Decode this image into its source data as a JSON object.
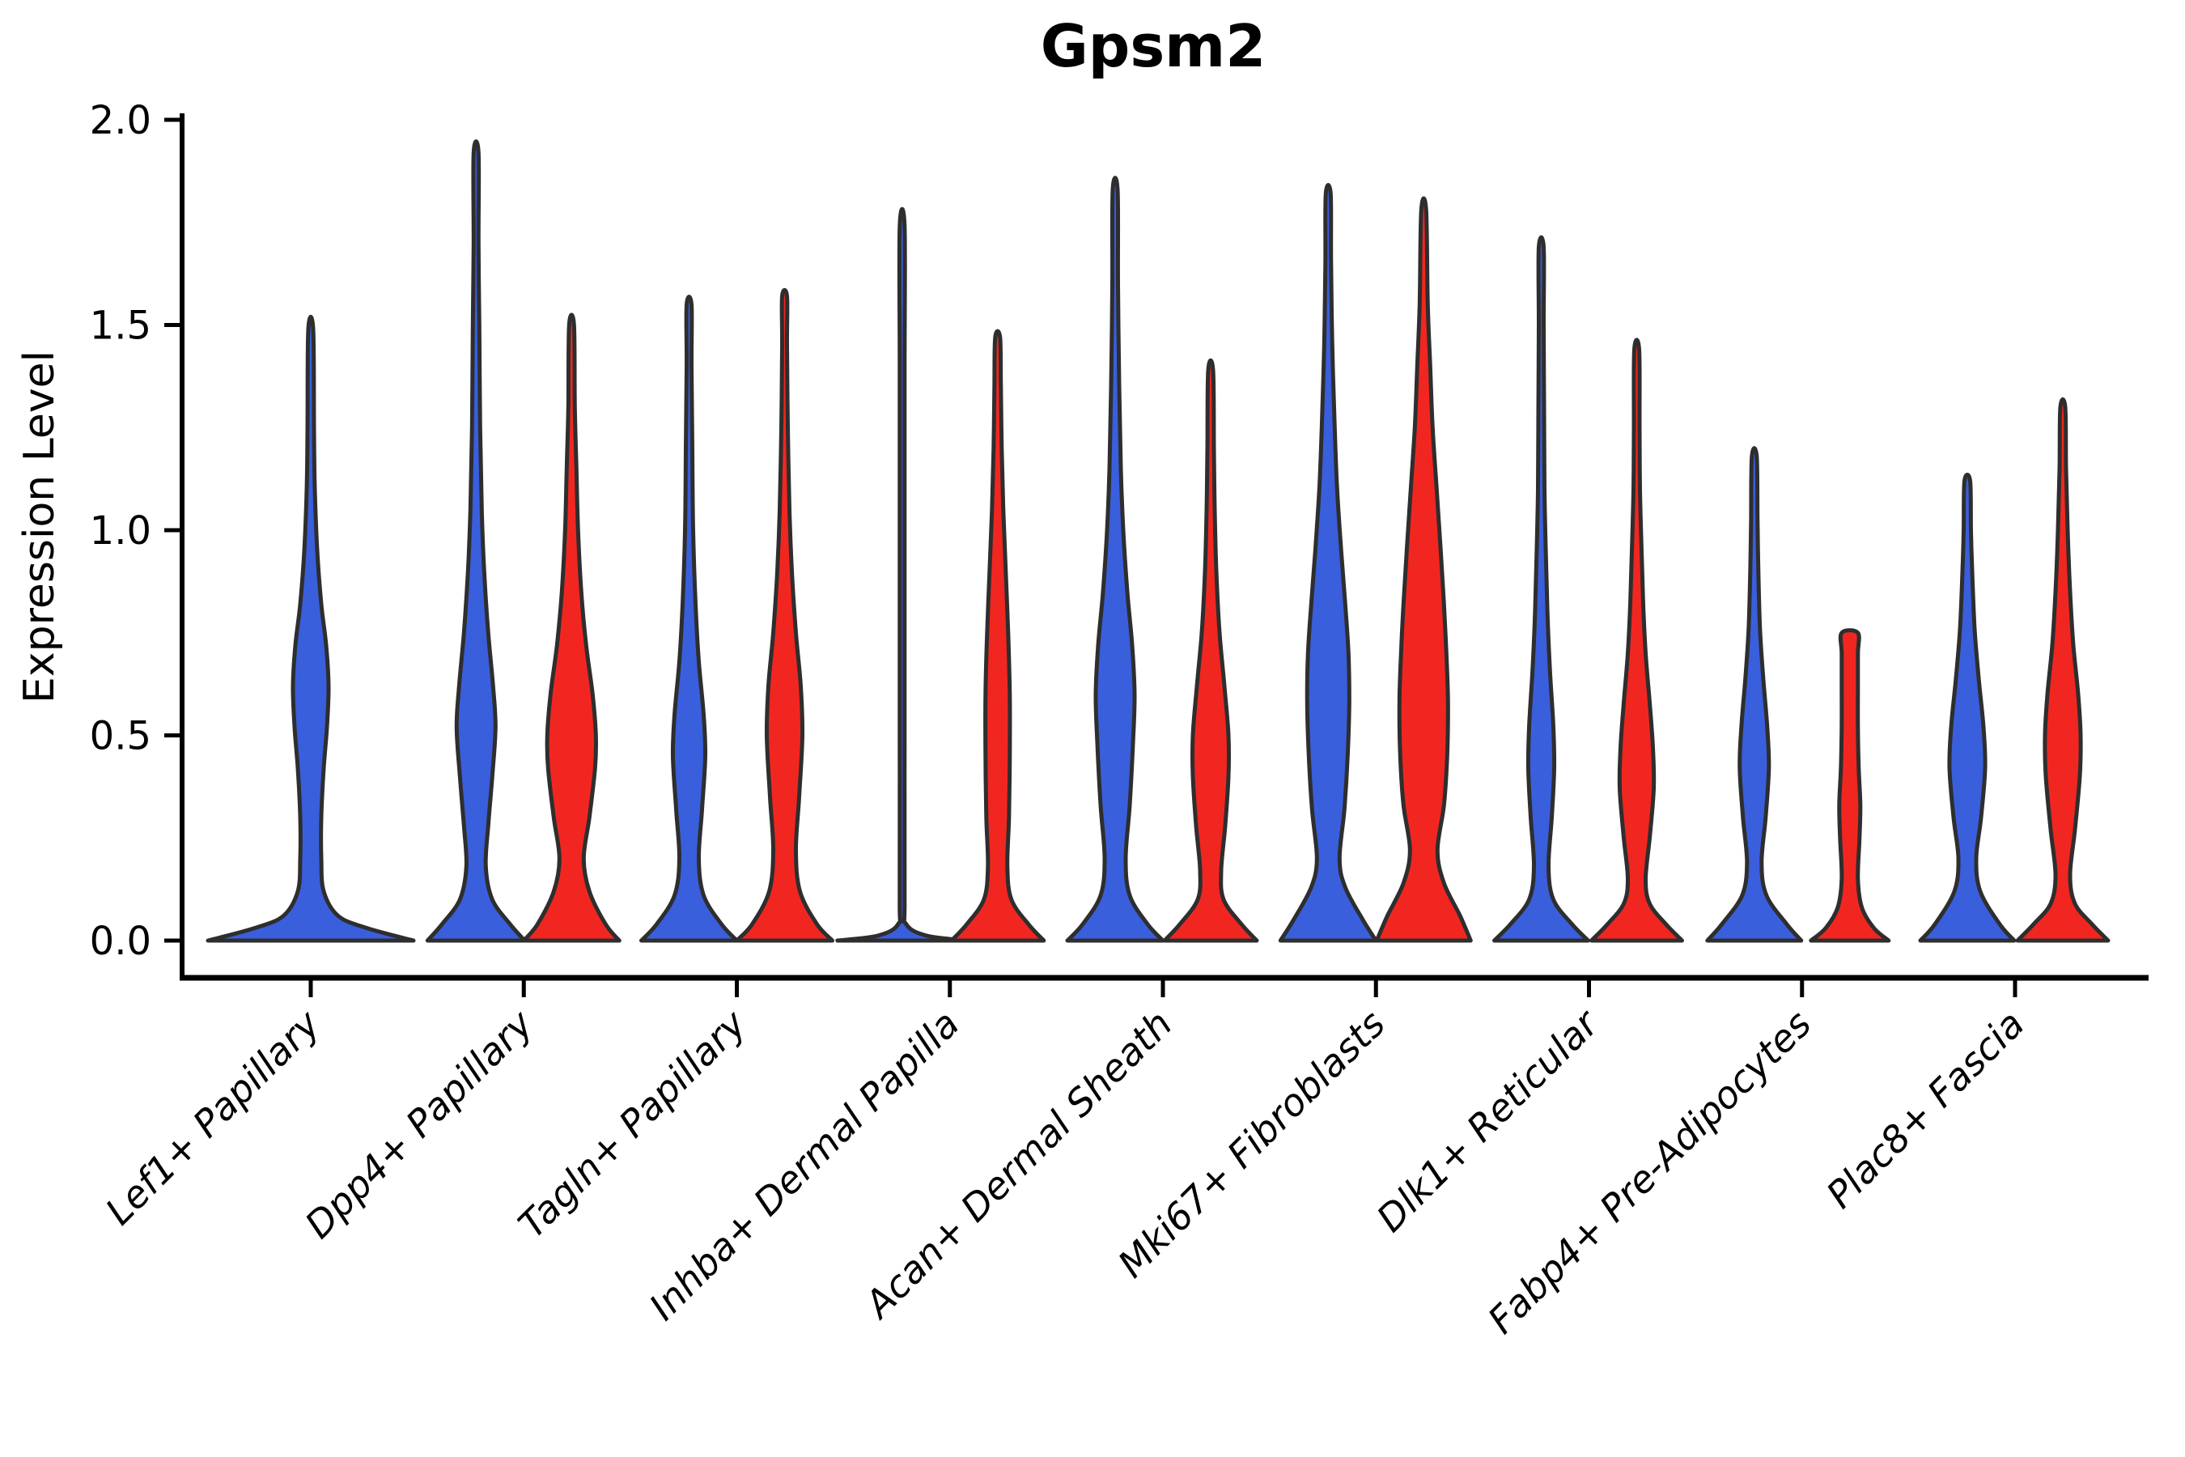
{
  "title": "Gpsm2",
  "y_axis": {
    "label": "Expression Level",
    "ticks": [
      {
        "label": "0.0",
        "value": 0.0
      },
      {
        "label": "0.5",
        "value": 0.5
      },
      {
        "label": "1.0",
        "value": 1.0
      },
      {
        "label": "1.5",
        "value": 1.5
      },
      {
        "label": "2.0",
        "value": 2.0
      }
    ]
  },
  "x_axis": {
    "categories": [
      "Lef1+ Papillary",
      "Dpp4+ Papillary",
      "Tagln+ Papillary",
      "Inhba+ Dermal Papilla",
      "Acan+ Dermal Sheath",
      "Mki67+ Fibroblasts",
      "Dlk1+ Reticular",
      "Fabp4+ Pre-Adipocytes",
      "Plac8+ Fascia"
    ],
    "label": ""
  },
  "colors": {
    "group_blue": "#3A5FDC",
    "group_red": "#F22620",
    "outline": "#2E2E2E",
    "axis": "#000000"
  },
  "chart_data": {
    "type": "violin",
    "title": "Gpsm2",
    "xlabel": "",
    "ylabel": "Expression Level",
    "ylim": [
      0,
      2
    ],
    "yticks": [
      0.0,
      0.5,
      1.0,
      1.5,
      2.0
    ],
    "grid": false,
    "legend": "none",
    "categories": [
      "Lef1+ Papillary",
      "Dpp4+ Papillary",
      "Tagln+ Papillary",
      "Inhba+ Dermal Papilla",
      "Acan+ Dermal Sheath",
      "Mki67+ Fibroblasts",
      "Dlk1+ Reticular",
      "Fabp4+ Pre-Adipocytes",
      "Plac8+ Fascia"
    ],
    "series": [
      {
        "name": "blue",
        "max_expression": [
          1.49,
          1.92,
          1.55,
          1.74,
          1.83,
          1.82,
          1.69,
          1.18,
          1.12
        ]
      },
      {
        "name": "red",
        "max_expression": [
          null,
          1.5,
          1.57,
          1.47,
          1.39,
          1.78,
          1.44,
          0.75,
          1.3
        ]
      }
    ],
    "violins": [
      {
        "cat": 0,
        "group": "blue",
        "solo": true,
        "max": 1.49,
        "flat_top": false,
        "profile": [
          [
            0,
            127
          ],
          [
            0.03,
            70
          ],
          [
            0.06,
            34
          ],
          [
            0.12,
            16
          ],
          [
            0.2,
            13
          ],
          [
            0.3,
            13
          ],
          [
            0.42,
            16
          ],
          [
            0.52,
            20
          ],
          [
            0.62,
            22
          ],
          [
            0.72,
            19
          ],
          [
            0.82,
            13
          ],
          [
            0.95,
            8
          ],
          [
            1.1,
            5
          ],
          [
            1.25,
            4
          ],
          [
            1.49,
            3
          ]
        ]
      },
      {
        "cat": 1,
        "group": "blue",
        "solo": false,
        "max": 1.92,
        "flat_top": false,
        "profile": [
          [
            0,
            60
          ],
          [
            0.04,
            42
          ],
          [
            0.1,
            20
          ],
          [
            0.18,
            12
          ],
          [
            0.28,
            15
          ],
          [
            0.4,
            20
          ],
          [
            0.52,
            24
          ],
          [
            0.62,
            21
          ],
          [
            0.75,
            15
          ],
          [
            0.9,
            10
          ],
          [
            1.05,
            7
          ],
          [
            1.25,
            5
          ],
          [
            1.5,
            4
          ],
          [
            1.7,
            3
          ],
          [
            1.92,
            3
          ]
        ]
      },
      {
        "cat": 1,
        "group": "red",
        "solo": false,
        "max": 1.5,
        "flat_top": false,
        "profile": [
          [
            0,
            59
          ],
          [
            0.04,
            42
          ],
          [
            0.12,
            22
          ],
          [
            0.2,
            15
          ],
          [
            0.3,
            22
          ],
          [
            0.42,
            29
          ],
          [
            0.5,
            30
          ],
          [
            0.6,
            26
          ],
          [
            0.72,
            18
          ],
          [
            0.85,
            12
          ],
          [
            1.0,
            8
          ],
          [
            1.15,
            6
          ],
          [
            1.3,
            4
          ],
          [
            1.5,
            3
          ]
        ]
      },
      {
        "cat": 2,
        "group": "blue",
        "solo": false,
        "max": 1.55,
        "flat_top": false,
        "profile": [
          [
            0,
            59
          ],
          [
            0.04,
            40
          ],
          [
            0.11,
            18
          ],
          [
            0.2,
            12
          ],
          [
            0.32,
            16
          ],
          [
            0.45,
            20
          ],
          [
            0.55,
            18
          ],
          [
            0.68,
            12
          ],
          [
            0.82,
            8
          ],
          [
            1.0,
            5
          ],
          [
            1.2,
            4
          ],
          [
            1.4,
            3
          ],
          [
            1.55,
            3
          ]
        ]
      },
      {
        "cat": 2,
        "group": "red",
        "solo": false,
        "max": 1.57,
        "flat_top": false,
        "profile": [
          [
            0,
            59
          ],
          [
            0.04,
            40
          ],
          [
            0.12,
            19
          ],
          [
            0.22,
            14
          ],
          [
            0.35,
            18
          ],
          [
            0.5,
            22
          ],
          [
            0.62,
            20
          ],
          [
            0.75,
            14
          ],
          [
            0.9,
            9
          ],
          [
            1.05,
            6
          ],
          [
            1.25,
            4
          ],
          [
            1.45,
            3
          ],
          [
            1.57,
            3
          ]
        ]
      },
      {
        "cat": 3,
        "group": "blue",
        "solo": false,
        "max": 1.74,
        "flat_top": false,
        "profile": [
          [
            0,
            80
          ],
          [
            0.012,
            30
          ],
          [
            0.04,
            5
          ],
          [
            0.1,
            3
          ],
          [
            0.5,
            3
          ],
          [
            1.0,
            3
          ],
          [
            1.4,
            3
          ],
          [
            1.74,
            3
          ]
        ]
      },
      {
        "cat": 3,
        "group": "red",
        "solo": false,
        "max": 1.47,
        "flat_top": false,
        "profile": [
          [
            0,
            57
          ],
          [
            0.04,
            38
          ],
          [
            0.1,
            17
          ],
          [
            0.18,
            12
          ],
          [
            0.3,
            14
          ],
          [
            0.45,
            15
          ],
          [
            0.6,
            15
          ],
          [
            0.75,
            13
          ],
          [
            0.9,
            10
          ],
          [
            1.05,
            7
          ],
          [
            1.2,
            5
          ],
          [
            1.35,
            4
          ],
          [
            1.47,
            3
          ]
        ]
      },
      {
        "cat": 4,
        "group": "blue",
        "solo": false,
        "max": 1.83,
        "flat_top": false,
        "profile": [
          [
            0,
            59
          ],
          [
            0.04,
            40
          ],
          [
            0.11,
            18
          ],
          [
            0.2,
            13
          ],
          [
            0.33,
            18
          ],
          [
            0.48,
            22
          ],
          [
            0.6,
            24
          ],
          [
            0.72,
            21
          ],
          [
            0.85,
            15
          ],
          [
            1.0,
            10
          ],
          [
            1.15,
            7
          ],
          [
            1.35,
            5
          ],
          [
            1.6,
            3.5
          ],
          [
            1.83,
            3
          ]
        ]
      },
      {
        "cat": 4,
        "group": "red",
        "solo": false,
        "max": 1.39,
        "flat_top": false,
        "profile": [
          [
            0,
            57
          ],
          [
            0.04,
            38
          ],
          [
            0.1,
            16
          ],
          [
            0.17,
            13
          ],
          [
            0.28,
            18
          ],
          [
            0.4,
            22
          ],
          [
            0.5,
            22
          ],
          [
            0.62,
            17
          ],
          [
            0.75,
            11
          ],
          [
            0.9,
            7
          ],
          [
            1.05,
            5
          ],
          [
            1.2,
            4
          ],
          [
            1.39,
            3
          ]
        ]
      },
      {
        "cat": 5,
        "group": "blue",
        "solo": false,
        "max": 1.82,
        "flat_top": false,
        "profile": [
          [
            0,
            59
          ],
          [
            0.05,
            43
          ],
          [
            0.13,
            21
          ],
          [
            0.2,
            14
          ],
          [
            0.32,
            20
          ],
          [
            0.45,
            24
          ],
          [
            0.58,
            26
          ],
          [
            0.7,
            25
          ],
          [
            0.82,
            21
          ],
          [
            0.95,
            16
          ],
          [
            1.1,
            11
          ],
          [
            1.25,
            8
          ],
          [
            1.45,
            5
          ],
          [
            1.65,
            3.5
          ],
          [
            1.82,
            3
          ]
        ]
      },
      {
        "cat": 5,
        "group": "red",
        "solo": false,
        "max": 1.78,
        "flat_top": false,
        "profile": [
          [
            0,
            58
          ],
          [
            0.06,
            45
          ],
          [
            0.14,
            25
          ],
          [
            0.22,
            17
          ],
          [
            0.33,
            25
          ],
          [
            0.45,
            29
          ],
          [
            0.58,
            30
          ],
          [
            0.7,
            28
          ],
          [
            0.82,
            25
          ],
          [
            0.95,
            21
          ],
          [
            1.1,
            16
          ],
          [
            1.25,
            11
          ],
          [
            1.4,
            8
          ],
          [
            1.55,
            5
          ],
          [
            1.78,
            3
          ]
        ]
      },
      {
        "cat": 6,
        "group": "blue",
        "solo": false,
        "max": 1.69,
        "flat_top": false,
        "profile": [
          [
            0,
            58
          ],
          [
            0.04,
            38
          ],
          [
            0.1,
            15
          ],
          [
            0.18,
            9
          ],
          [
            0.3,
            13
          ],
          [
            0.42,
            16
          ],
          [
            0.52,
            15
          ],
          [
            0.65,
            11
          ],
          [
            0.78,
            8
          ],
          [
            0.92,
            6
          ],
          [
            1.1,
            4
          ],
          [
            1.3,
            3.5
          ],
          [
            1.5,
            3
          ],
          [
            1.69,
            3
          ]
        ]
      },
      {
        "cat": 6,
        "group": "red",
        "solo": false,
        "max": 1.44,
        "flat_top": false,
        "profile": [
          [
            0,
            56
          ],
          [
            0.04,
            36
          ],
          [
            0.09,
            16
          ],
          [
            0.15,
            11
          ],
          [
            0.25,
            16
          ],
          [
            0.37,
            21
          ],
          [
            0.47,
            20
          ],
          [
            0.58,
            16
          ],
          [
            0.7,
            11
          ],
          [
            0.82,
            8
          ],
          [
            0.95,
            6
          ],
          [
            1.1,
            4
          ],
          [
            1.25,
            3.5
          ],
          [
            1.44,
            3
          ]
        ]
      },
      {
        "cat": 7,
        "group": "blue",
        "solo": false,
        "max": 1.18,
        "flat_top": false,
        "profile": [
          [
            0,
            58
          ],
          [
            0.04,
            40
          ],
          [
            0.11,
            15
          ],
          [
            0.19,
            9
          ],
          [
            0.3,
            14
          ],
          [
            0.42,
            18
          ],
          [
            0.52,
            16
          ],
          [
            0.64,
            11
          ],
          [
            0.76,
            7
          ],
          [
            0.9,
            5
          ],
          [
            1.02,
            4
          ],
          [
            1.18,
            3
          ]
        ]
      },
      {
        "cat": 7,
        "group": "red",
        "solo": false,
        "max": 0.75,
        "flat_top": true,
        "profile": [
          [
            0,
            48
          ],
          [
            0.03,
            30
          ],
          [
            0.08,
            15
          ],
          [
            0.15,
            10
          ],
          [
            0.25,
            12
          ],
          [
            0.33,
            13
          ],
          [
            0.42,
            11
          ],
          [
            0.52,
            10
          ],
          [
            0.62,
            10
          ],
          [
            0.7,
            10
          ],
          [
            0.75,
            10
          ]
        ]
      },
      {
        "cat": 8,
        "group": "blue",
        "solo": false,
        "max": 1.12,
        "flat_top": false,
        "profile": [
          [
            0,
            58
          ],
          [
            0.04,
            40
          ],
          [
            0.12,
            16
          ],
          [
            0.2,
            11
          ],
          [
            0.3,
            17
          ],
          [
            0.42,
            22
          ],
          [
            0.52,
            20
          ],
          [
            0.64,
            14
          ],
          [
            0.76,
            9
          ],
          [
            0.9,
            6
          ],
          [
            1.0,
            4.5
          ],
          [
            1.12,
            3.5
          ]
        ]
      },
      {
        "cat": 8,
        "group": "red",
        "solo": false,
        "max": 1.3,
        "flat_top": false,
        "profile": [
          [
            0,
            56
          ],
          [
            0.04,
            36
          ],
          [
            0.09,
            15
          ],
          [
            0.16,
            9
          ],
          [
            0.27,
            15
          ],
          [
            0.4,
            21
          ],
          [
            0.5,
            22
          ],
          [
            0.6,
            19
          ],
          [
            0.72,
            13
          ],
          [
            0.85,
            9
          ],
          [
            1.0,
            6
          ],
          [
            1.15,
            4
          ],
          [
            1.3,
            3
          ]
        ]
      }
    ]
  }
}
